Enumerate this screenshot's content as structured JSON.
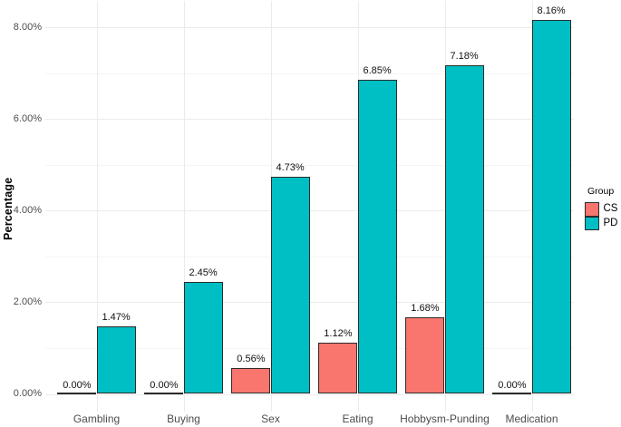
{
  "chart_data": {
    "type": "bar",
    "title": "",
    "xlabel": "",
    "ylabel": "Percentage",
    "categories": [
      "Gambling",
      "Buying",
      "Sex",
      "Eating",
      "Hobbysm-Punding",
      "Medication"
    ],
    "series": [
      {
        "name": "CS",
        "color": "#F8766D",
        "values": [
          0,
          0,
          0.56,
          1.12,
          1.68,
          0
        ],
        "labels": [
          "0.00%",
          "0.00%",
          "0.56%",
          "1.12%",
          "1.68%",
          "0.00%"
        ]
      },
      {
        "name": "PD",
        "color": "#00BFC4",
        "values": [
          1.47,
          2.45,
          4.73,
          6.85,
          7.18,
          8.16
        ],
        "labels": [
          "1.47%",
          "2.45%",
          "4.73%",
          "6.85%",
          "7.18%",
          "8.16%"
        ]
      }
    ],
    "y_ticks": [
      {
        "value": 0,
        "label": "0.00%"
      },
      {
        "value": 2,
        "label": "2.00%"
      },
      {
        "value": 4,
        "label": "4.00%"
      },
      {
        "value": 6,
        "label": "6.00%"
      },
      {
        "value": 8,
        "label": "8.00%"
      }
    ],
    "y_minor_ticks": [
      1,
      3,
      5,
      7
    ],
    "ylim": [
      -0.41,
      8.57
    ],
    "grid": true,
    "legend": {
      "title": "Group",
      "position": "right"
    },
    "colors": {
      "background": "#FFFFFF",
      "bar_outline": "#2B2B2B",
      "grid_major": "#EBEBEB",
      "grid_minor": "#F5F5F5",
      "axis_text": "#4D4D4D",
      "value_label_text": "#111111"
    }
  }
}
